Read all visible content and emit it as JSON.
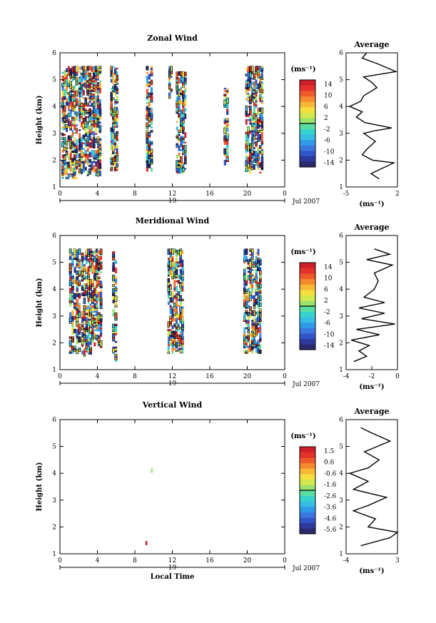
{
  "chart_data": [
    {
      "type": "heatmap",
      "title": "Zonal Wind",
      "ylabel": "Height (km)",
      "x_ticks": [
        "0",
        "4",
        "8",
        "12",
        "16",
        "20",
        "0"
      ],
      "xlim": [
        0,
        24
      ],
      "y_ticks": [
        "1",
        "2",
        "3",
        "4",
        "5",
        "6"
      ],
      "ylim": [
        1,
        6
      ],
      "date_day": "19",
      "date_month_year": "Jul 2007",
      "colorbar": {
        "unit": "(ms⁻¹)",
        "tick_labels": [
          "14",
          "10",
          "6",
          "2",
          "-2",
          "-6",
          "-10",
          "-14"
        ],
        "range": [
          -16,
          16
        ]
      },
      "data_columns": [
        {
          "x0": 0.2,
          "x1": 1.9,
          "y0": 1.3,
          "y1": 5.5
        },
        {
          "x0": 2.0,
          "x1": 4.4,
          "y0": 1.4,
          "y1": 5.5
        },
        {
          "x0": 5.4,
          "x1": 6.2,
          "y0": 1.6,
          "y1": 5.5
        },
        {
          "x0": 9.2,
          "x1": 9.9,
          "y0": 1.5,
          "y1": 5.5
        },
        {
          "x0": 11.6,
          "x1": 12.0,
          "y0": 4.3,
          "y1": 5.5
        },
        {
          "x0": 12.4,
          "x1": 13.5,
          "y0": 1.5,
          "y1": 5.3
        },
        {
          "x0": 17.5,
          "x1": 18.0,
          "y0": 1.8,
          "y1": 4.7
        },
        {
          "x0": 19.8,
          "x1": 21.7,
          "y0": 1.5,
          "y1": 5.5
        }
      ],
      "average_panel": {
        "title": "Average",
        "xlabel": "(ms⁻¹)",
        "x_ticks": [
          "-5",
          "2"
        ],
        "xlim": [
          -5,
          2
        ],
        "y_ticks": [
          "1",
          "2",
          "3",
          "4",
          "5",
          "6"
        ],
        "ylim": [
          1,
          6
        ],
        "profile": [
          [
            -0.5,
            1.3
          ],
          [
            -1.6,
            1.5
          ],
          [
            1.5,
            1.9
          ],
          [
            -1.4,
            2.0
          ],
          [
            -2.8,
            2.2
          ],
          [
            -2.2,
            2.4
          ],
          [
            -1.0,
            2.7
          ],
          [
            -2.6,
            3.0
          ],
          [
            -1.0,
            3.1
          ],
          [
            1.2,
            3.2
          ],
          [
            -2.4,
            3.4
          ],
          [
            -3.6,
            3.6
          ],
          [
            -2.8,
            3.8
          ],
          [
            -4.5,
            4.0
          ],
          [
            -3.0,
            4.2
          ],
          [
            -2.6,
            4.4
          ],
          [
            -0.8,
            4.7
          ],
          [
            -1.5,
            4.9
          ],
          [
            -2.6,
            5.1
          ],
          [
            1.8,
            5.3
          ],
          [
            -0.8,
            5.6
          ],
          [
            -2.8,
            5.8
          ],
          [
            -2.2,
            6.0
          ]
        ]
      }
    },
    {
      "type": "heatmap",
      "title": "Meridional Wind",
      "ylabel": "Height (km)",
      "x_ticks": [
        "0",
        "4",
        "8",
        "12",
        "16",
        "20",
        "0"
      ],
      "xlim": [
        0,
        24
      ],
      "y_ticks": [
        "1",
        "2",
        "3",
        "4",
        "5",
        "6"
      ],
      "ylim": [
        1,
        6
      ],
      "date_day": "19",
      "date_month_year": "Jul 2007",
      "colorbar": {
        "unit": "(ms⁻¹)",
        "tick_labels": [
          "14",
          "10",
          "6",
          "2",
          "-2",
          "-6",
          "-10",
          "-14"
        ],
        "range": [
          -16,
          16
        ]
      },
      "data_columns": [
        {
          "x0": 1.0,
          "x1": 2.2,
          "y0": 1.6,
          "y1": 5.5
        },
        {
          "x0": 2.3,
          "x1": 3.6,
          "y0": 1.5,
          "y1": 5.5
        },
        {
          "x0": 3.6,
          "x1": 4.5,
          "y0": 1.8,
          "y1": 5.5
        },
        {
          "x0": 5.6,
          "x1": 6.1,
          "y0": 1.3,
          "y1": 5.4
        },
        {
          "x0": 11.5,
          "x1": 13.2,
          "y0": 1.6,
          "y1": 5.5
        },
        {
          "x0": 19.6,
          "x1": 21.5,
          "y0": 1.6,
          "y1": 5.5
        }
      ],
      "average_panel": {
        "title": "Average",
        "xlabel": "(ms⁻¹)",
        "x_ticks": [
          "-4",
          "-2",
          "0"
        ],
        "xlim": [
          -4,
          0
        ],
        "y_ticks": [
          "1",
          "2",
          "3",
          "4",
          "5",
          "6"
        ],
        "ylim": [
          1,
          6
        ],
        "profile": [
          [
            -3.4,
            1.3
          ],
          [
            -2.4,
            1.5
          ],
          [
            -3.0,
            1.7
          ],
          [
            -2.2,
            1.9
          ],
          [
            -3.6,
            2.1
          ],
          [
            -1.4,
            2.3
          ],
          [
            -3.2,
            2.5
          ],
          [
            -0.2,
            2.7
          ],
          [
            -2.8,
            2.9
          ],
          [
            -1.0,
            3.1
          ],
          [
            -3.0,
            3.3
          ],
          [
            -1.0,
            3.5
          ],
          [
            -2.6,
            3.7
          ],
          [
            -1.8,
            4.0
          ],
          [
            -1.5,
            4.3
          ],
          [
            -1.8,
            4.6
          ],
          [
            -0.4,
            4.9
          ],
          [
            -2.4,
            5.1
          ],
          [
            -0.6,
            5.3
          ],
          [
            -1.8,
            5.5
          ]
        ]
      }
    },
    {
      "type": "heatmap",
      "title": "Vertical Wind",
      "xlabel": "Local Time",
      "ylabel": "Height (km)",
      "x_ticks": [
        "0",
        "4",
        "8",
        "12",
        "16",
        "20",
        "0"
      ],
      "xlim": [
        0,
        24
      ],
      "y_ticks": [
        "1",
        "2",
        "3",
        "4",
        "5",
        "6"
      ],
      "ylim": [
        1,
        6
      ],
      "date_day": "19",
      "date_month_year": "Jul 2007",
      "colorbar": {
        "unit": "(ms⁻¹)",
        "tick_labels": [
          "1.5",
          "0.6",
          "-0.6",
          "-1.6",
          "-2.6",
          "-3.6",
          "-4.6",
          "-5.6"
        ],
        "range": [
          -6.0,
          2.0
        ]
      },
      "points": [
        {
          "x": 9.8,
          "y": 4.1,
          "value": -1.6
        },
        {
          "x": 9.2,
          "y": 1.4,
          "value": 1.5
        }
      ],
      "average_panel": {
        "title": "Average",
        "xlabel": "(ms⁻¹)",
        "x_ticks": [
          "-4",
          "3"
        ],
        "xlim": [
          -4,
          3
        ],
        "y_ticks": [
          "1",
          "2",
          "3",
          "4",
          "5",
          "6"
        ],
        "ylim": [
          1,
          6
        ],
        "profile": [
          [
            -2.0,
            1.3
          ],
          [
            2.0,
            1.6
          ],
          [
            3.0,
            1.8
          ],
          [
            -1.0,
            2.0
          ],
          [
            0.0,
            2.3
          ],
          [
            -3.0,
            2.6
          ],
          [
            -1.0,
            2.8
          ],
          [
            1.5,
            3.1
          ],
          [
            -3.0,
            3.4
          ],
          [
            -1.0,
            3.7
          ],
          [
            -3.5,
            4.0
          ],
          [
            -1.0,
            4.2
          ],
          [
            0.5,
            4.5
          ],
          [
            -1.5,
            4.8
          ],
          [
            2.0,
            5.2
          ],
          [
            -0.5,
            5.5
          ],
          [
            -2.0,
            5.7
          ]
        ]
      }
    }
  ]
}
